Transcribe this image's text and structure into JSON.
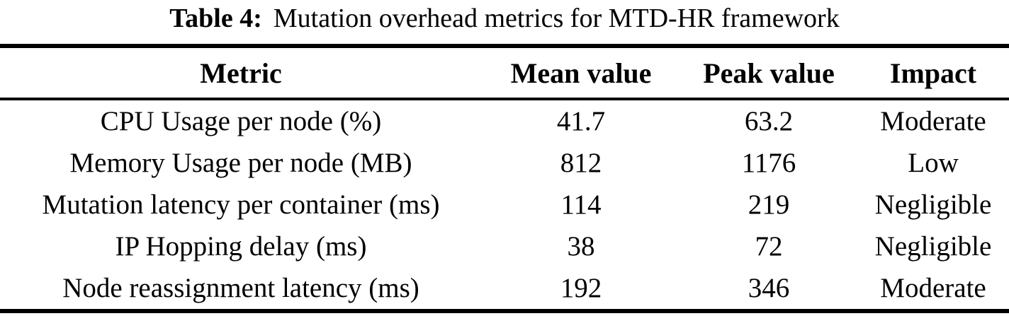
{
  "caption": {
    "label": "Table 4:",
    "text": "Mutation overhead metrics for MTD-HR framework"
  },
  "table": {
    "columns": [
      "Metric",
      "Mean value",
      "Peak value",
      "Impact"
    ],
    "rows": [
      {
        "metric": "CPU Usage per node (%)",
        "mean": "41.7",
        "peak": "63.2",
        "impact": "Moderate"
      },
      {
        "metric": "Memory Usage per node (MB)",
        "mean": "812",
        "peak": "1176",
        "impact": "Low"
      },
      {
        "metric": "Mutation latency per container (ms)",
        "mean": "114",
        "peak": "219",
        "impact": "Negligible"
      },
      {
        "metric": "IP Hopping delay (ms)",
        "mean": "38",
        "peak": "72",
        "impact": "Negligible"
      },
      {
        "metric": "Node reassignment latency (ms)",
        "mean": "192",
        "peak": "346",
        "impact": "Moderate"
      }
    ]
  },
  "colors": {
    "text": "#000000",
    "background": "#ffffff",
    "rule": "#000000"
  }
}
